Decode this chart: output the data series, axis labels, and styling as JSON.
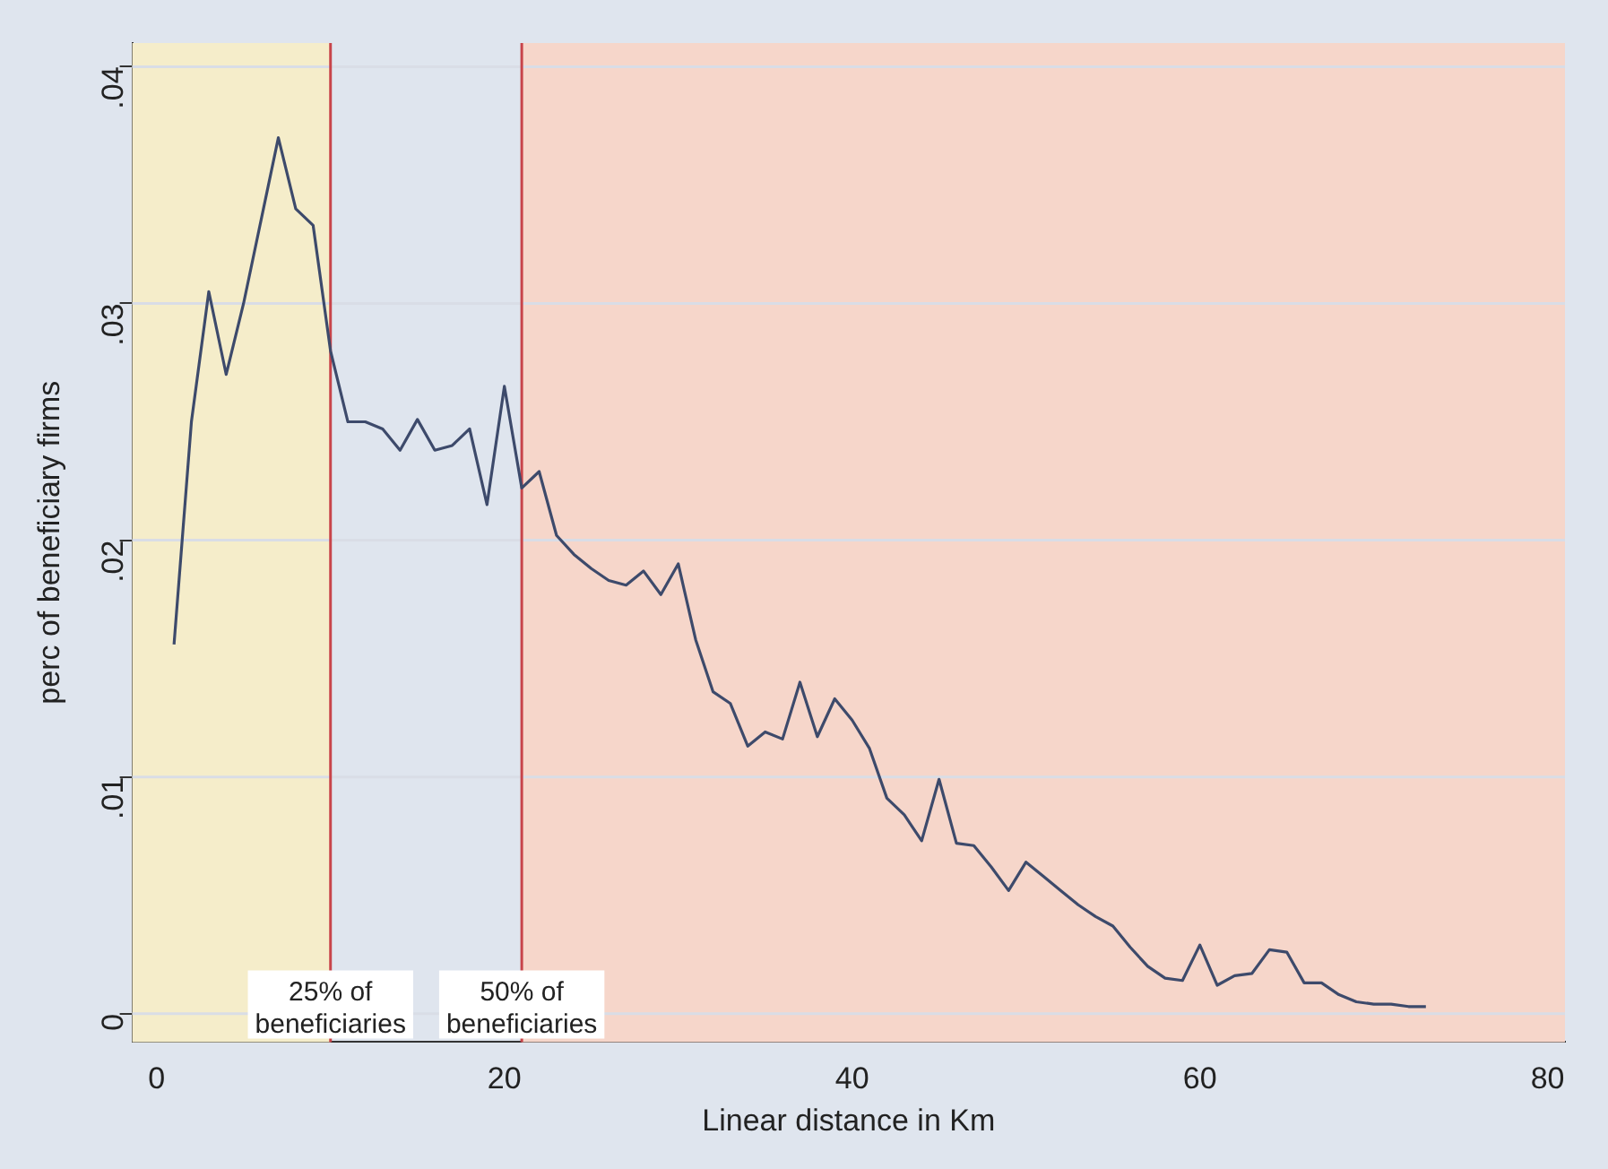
{
  "chart_data": {
    "type": "line",
    "xlabel": "Linear distance in Km",
    "ylabel": "perc of beneficiary firms",
    "x": [
      1,
      2,
      3,
      4,
      5,
      6,
      7,
      8,
      9,
      10,
      11,
      12,
      13,
      14,
      15,
      16,
      17,
      18,
      19,
      20,
      21,
      22,
      23,
      24,
      25,
      26,
      27,
      28,
      29,
      30,
      31,
      32,
      33,
      34,
      35,
      36,
      37,
      38,
      39,
      40,
      41,
      42,
      43,
      44,
      45,
      46,
      47,
      48,
      49,
      50,
      51,
      52,
      53,
      54,
      55,
      56,
      57,
      58,
      59,
      60,
      61,
      62,
      63,
      64,
      65,
      66,
      67,
      68,
      69,
      70,
      71,
      72,
      73
    ],
    "series": [
      {
        "color": "#3d4a6b",
        "values": [
          0.0156,
          0.025,
          0.0305,
          0.027,
          0.03,
          0.0335,
          0.037,
          0.034,
          0.0333,
          0.028,
          0.025,
          0.025,
          0.0247,
          0.0238,
          0.0251,
          0.0238,
          0.024,
          0.0247,
          0.0215,
          0.0265,
          0.0222,
          0.0229,
          0.0202,
          0.0194,
          0.0188,
          0.0183,
          0.0181,
          0.0187,
          0.0177,
          0.019,
          0.0158,
          0.0136,
          0.0131,
          0.0113,
          0.0119,
          0.0116,
          0.014,
          0.0117,
          0.0133,
          0.0124,
          0.0112,
          0.0091,
          0.0084,
          0.0073,
          0.0099,
          0.0072,
          0.0071,
          0.0062,
          0.0052,
          0.0064,
          0.0058,
          0.0052,
          0.0046,
          0.0041,
          0.0037,
          0.0028,
          0.002,
          0.0015,
          0.0014,
          0.0029,
          0.0012,
          0.0016,
          0.0017,
          0.0027,
          0.0026,
          0.0013,
          0.0013,
          0.0008,
          0.0005,
          0.0004,
          0.0004,
          0.0003,
          0.0003
        ]
      }
    ],
    "xlim": [
      -1.4,
      81
    ],
    "ylim": [
      -0.0012,
      0.041
    ],
    "xticks": [
      0,
      20,
      40,
      60,
      80
    ],
    "yticks": [
      {
        "value": 0,
        "label": "0"
      },
      {
        "value": 0.01,
        "label": ".01"
      },
      {
        "value": 0.02,
        "label": ".02"
      },
      {
        "value": 0.03,
        "label": ".03"
      },
      {
        "value": 0.04,
        "label": ".04"
      }
    ],
    "grid": "y",
    "marker": "none",
    "line_style": "solid",
    "legend": false,
    "bands": [
      {
        "axis": "x",
        "from": -1.4,
        "to": 10,
        "color": "#f5edca"
      },
      {
        "axis": "x",
        "from": 21,
        "to": 81,
        "color": "#f6d6ca"
      }
    ],
    "ref_lines": [
      {
        "axis": "x",
        "value": 10,
        "label": "25% of beneficiaries",
        "color": "#c8444a"
      },
      {
        "axis": "x",
        "value": 21,
        "label": "50% of beneficiaries",
        "color": "#c8444a"
      }
    ]
  }
}
